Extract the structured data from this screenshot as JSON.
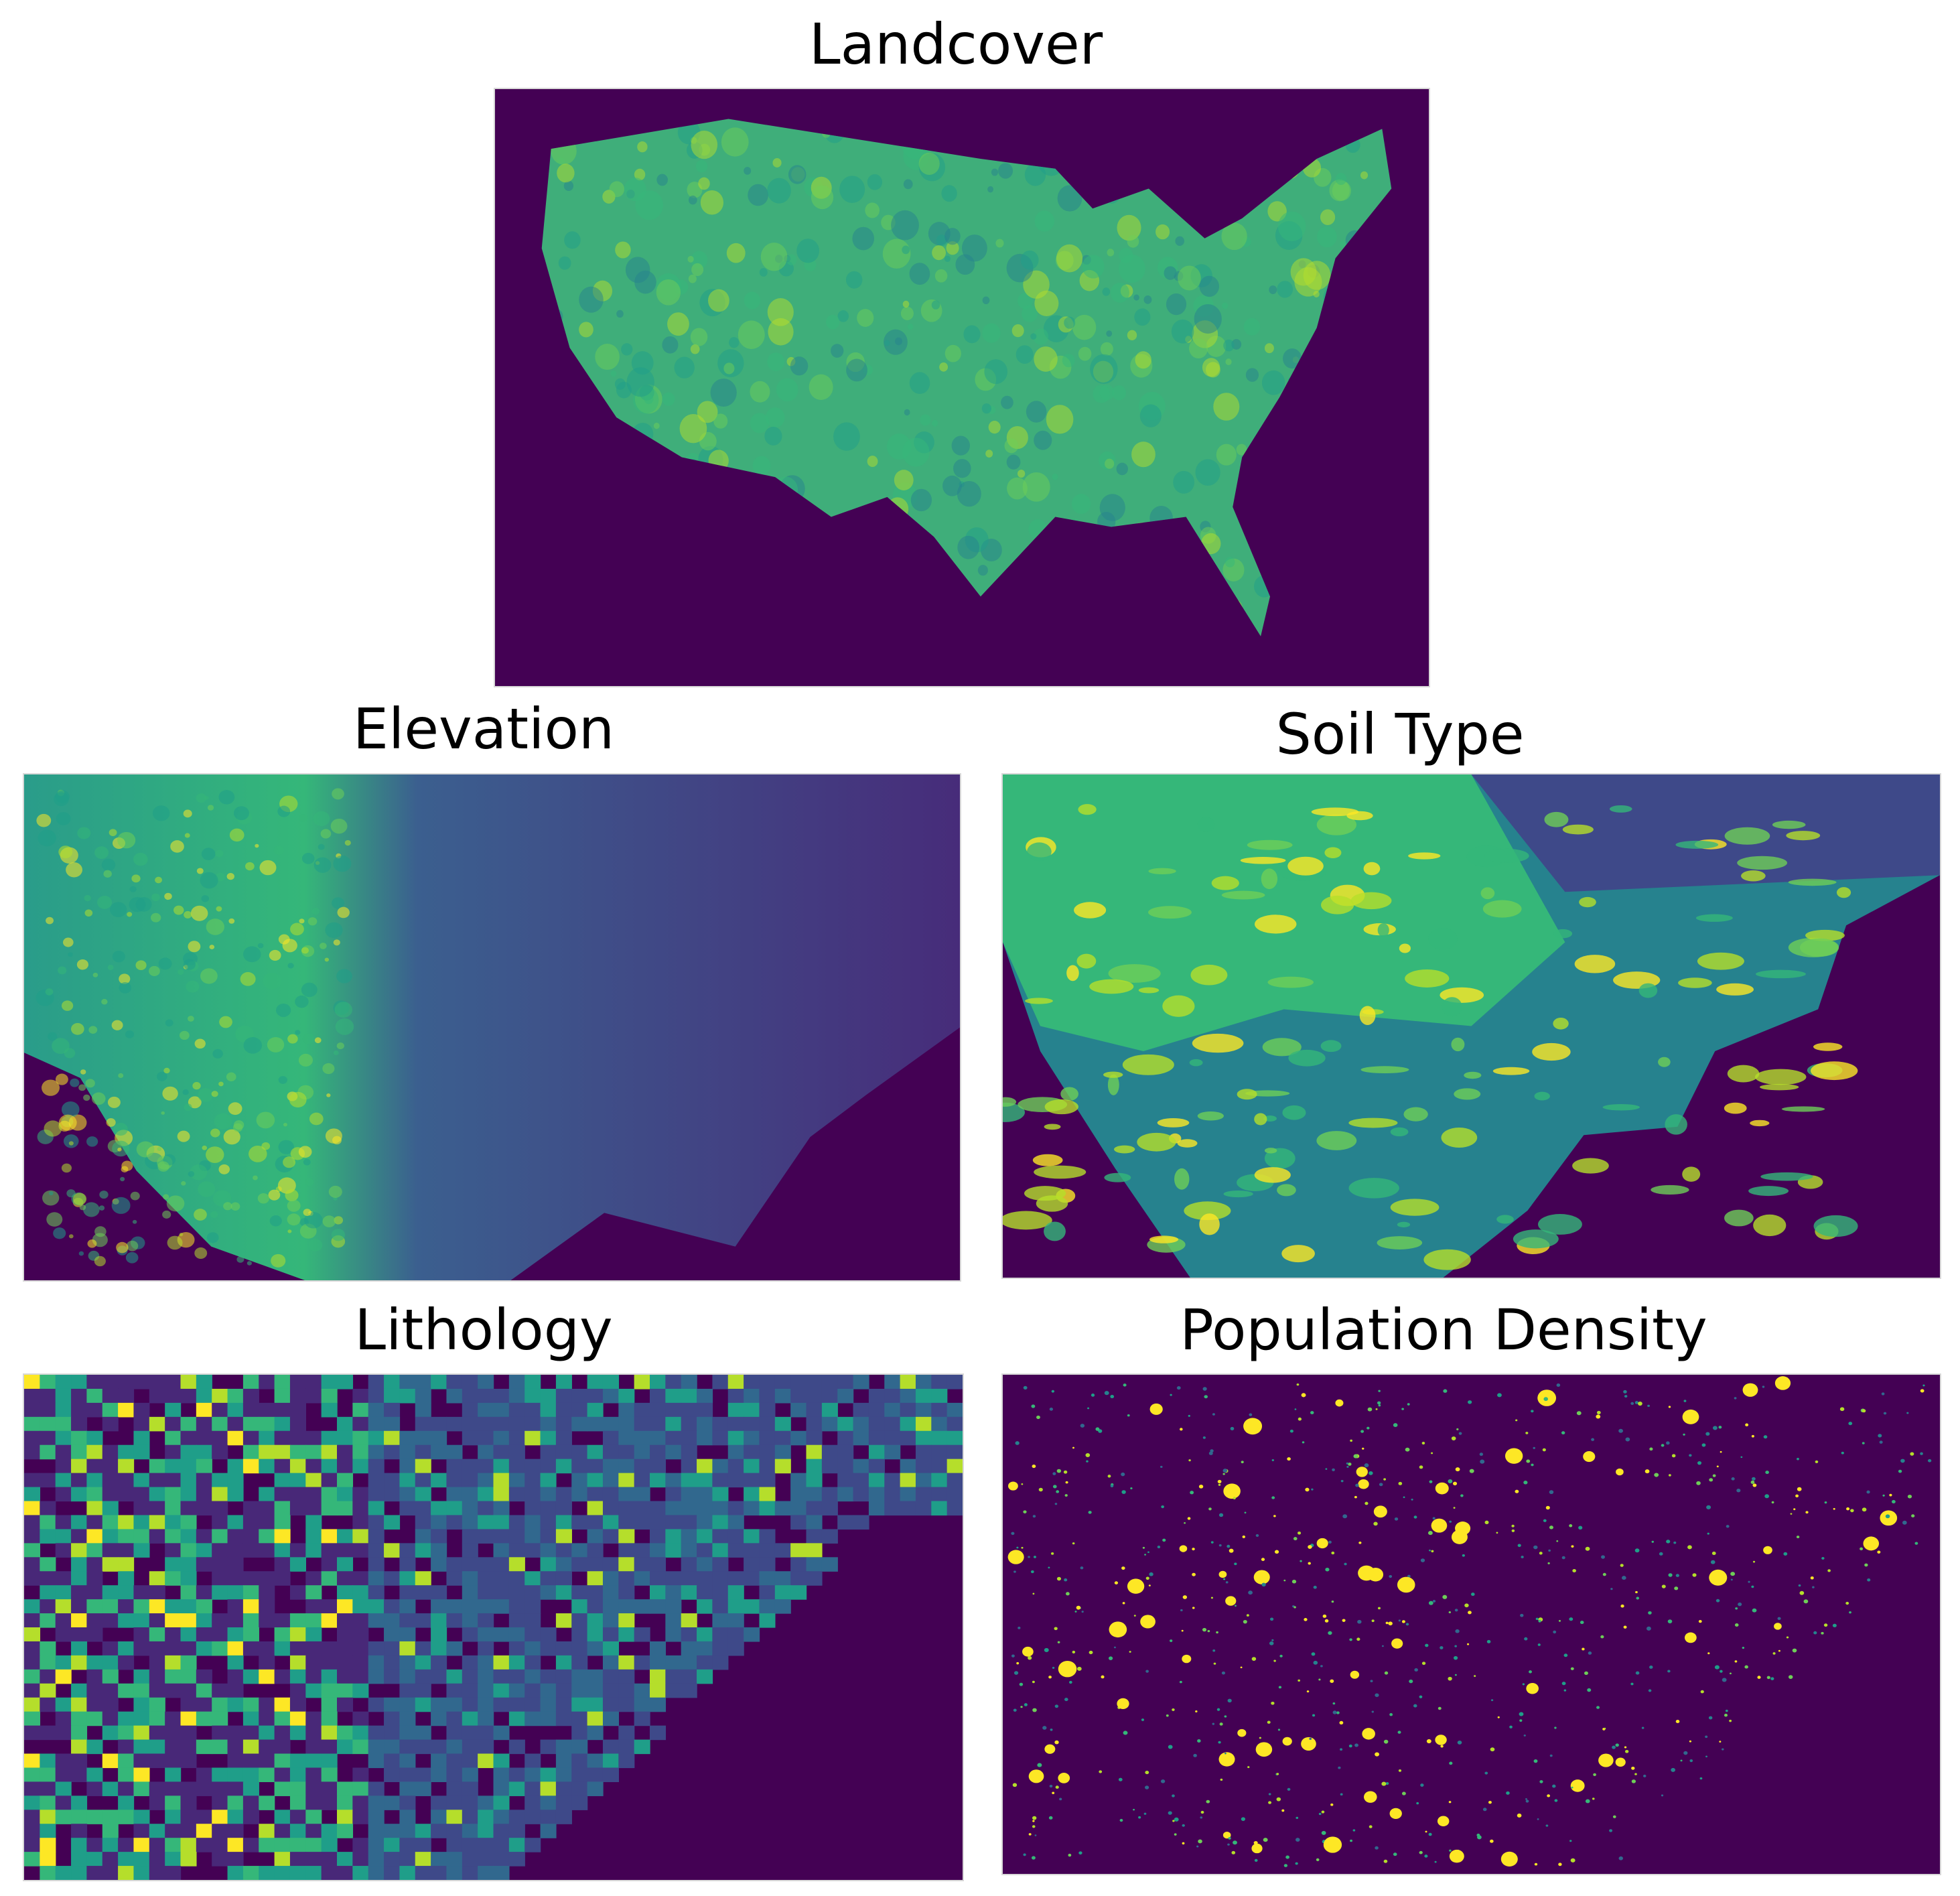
{
  "panels": [
    {
      "title": "Landcover"
    },
    {
      "title": "Elevation"
    },
    {
      "title": "Soil Type"
    },
    {
      "title": "Lithology"
    },
    {
      "title": "Population Density"
    }
  ]
}
